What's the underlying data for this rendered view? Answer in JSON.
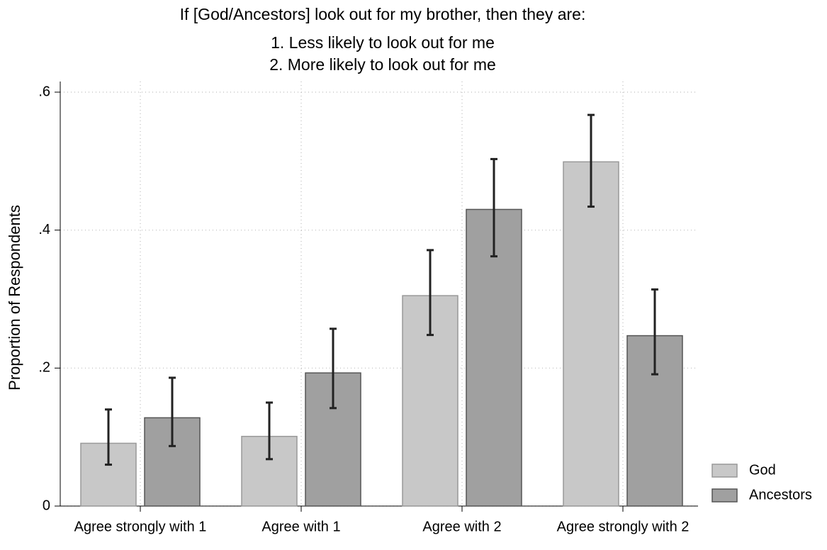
{
  "chart_data": {
    "type": "bar",
    "title": [
      "If [God/Ancestors] look out for my brother, then they are:",
      "1. Less likely to look out for me",
      "2. More likely to look out for me"
    ],
    "y_label": "Proportion of Respondents",
    "categories": [
      "Agree strongly with 1",
      "Agree with 1",
      "Agree with 2",
      "Agree strongly with 2"
    ],
    "series": [
      {
        "name": "God",
        "color": "#c8c8c8",
        "values": [
          0.091,
          0.101,
          0.305,
          0.499
        ],
        "lower": [
          0.06,
          0.068,
          0.248,
          0.434
        ],
        "upper": [
          0.14,
          0.15,
          0.371,
          0.567
        ]
      },
      {
        "name": "Ancestors",
        "color": "#a0a0a0",
        "values": [
          0.128,
          0.193,
          0.43,
          0.247
        ],
        "lower": [
          0.087,
          0.142,
          0.362,
          0.191
        ],
        "upper": [
          0.186,
          0.257,
          0.503,
          0.314
        ]
      }
    ],
    "ylim": [
      0,
      0.6
    ],
    "yticks": [
      {
        "value": 0,
        "label": "0"
      },
      {
        "value": 0.2,
        "label": ".2"
      },
      {
        "value": 0.4,
        "label": ".4"
      },
      {
        "value": 0.6,
        "label": ".6"
      }
    ],
    "grid": true,
    "legend": "bottom-right"
  }
}
